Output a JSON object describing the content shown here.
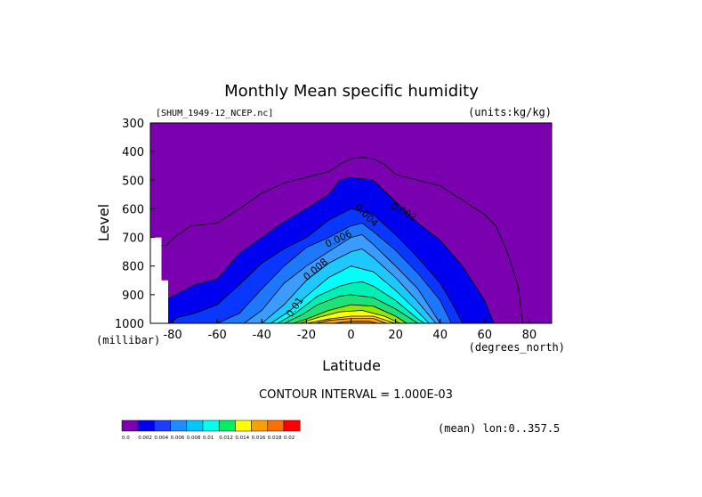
{
  "chart_data": {
    "type": "contour",
    "title": "Monthly Mean specific humidity",
    "file_label": "[SHUM_1949-12_NCEP.nc]",
    "units_label": "(units:kg/kg)",
    "xlabel": "Latitude",
    "ylabel": "Level",
    "x_unit_label": "(degrees_north)",
    "y_unit_label": "(millibar)",
    "xlim": [
      -90,
      90
    ],
    "ylim": [
      1000,
      300
    ],
    "x_ticks": [
      -80,
      -60,
      -40,
      -20,
      0,
      20,
      40,
      60,
      80
    ],
    "y_ticks": [
      300,
      400,
      500,
      600,
      700,
      800,
      900,
      1000
    ],
    "contour_interval_label": "CONTOUR INTERVAL = 1.000E-03",
    "mean_label": "(mean) lon:0..357.5",
    "missing_region": [
      [
        -90,
        700
      ],
      [
        -85,
        700
      ],
      [
        -85,
        850
      ],
      [
        -82,
        850
      ],
      [
        -82,
        1000
      ],
      [
        -90,
        1000
      ]
    ],
    "contour_labels": [
      {
        "text": "0.002",
        "lat": 23,
        "lev": 620,
        "angle": 28
      },
      {
        "text": "0.004",
        "lat": 6,
        "lev": 630,
        "angle": 45
      },
      {
        "text": "0.006",
        "lat": -5,
        "lev": 715,
        "angle": -25
      },
      {
        "text": "0.008",
        "lat": -15,
        "lev": 820,
        "angle": -40
      },
      {
        "text": "0.01",
        "lat": -24,
        "lev": 950,
        "angle": -55
      }
    ],
    "levels": [
      {
        "min": 0.0,
        "color": "#7a00b0",
        "points": [
          [
            -90,
            300
          ],
          [
            90,
            300
          ],
          [
            90,
            1000
          ],
          [
            -90,
            1000
          ]
        ]
      },
      {
        "min": 0.002,
        "color": "#0000f0",
        "points": [
          [
            -87,
            1000
          ],
          [
            -90,
            1000
          ],
          [
            -90,
            880
          ],
          [
            -86,
            935
          ],
          [
            -80,
            905
          ],
          [
            -70,
            865
          ],
          [
            -60,
            845
          ],
          [
            -50,
            755
          ],
          [
            -40,
            700
          ],
          [
            -30,
            645
          ],
          [
            -20,
            600
          ],
          [
            -10,
            550
          ],
          [
            -5,
            500
          ],
          [
            0,
            490
          ],
          [
            10,
            500
          ],
          [
            20,
            575
          ],
          [
            30,
            650
          ],
          [
            40,
            710
          ],
          [
            50,
            800
          ],
          [
            60,
            920
          ],
          [
            64,
            1000
          ]
        ]
      },
      {
        "min": 0.003,
        "color": "#0a37ff",
        "points": [
          [
            -81,
            1000
          ],
          [
            -78,
            980
          ],
          [
            -70,
            965
          ],
          [
            -60,
            935
          ],
          [
            -50,
            865
          ],
          [
            -40,
            790
          ],
          [
            -30,
            740
          ],
          [
            -20,
            700
          ],
          [
            -10,
            640
          ],
          [
            0,
            600
          ],
          [
            10,
            620
          ],
          [
            20,
            690
          ],
          [
            30,
            770
          ],
          [
            40,
            860
          ],
          [
            45,
            925
          ],
          [
            50,
            1000
          ]
        ]
      },
      {
        "min": 0.004,
        "color": "#1e78ff",
        "points": [
          [
            -60,
            1000
          ],
          [
            -50,
            965
          ],
          [
            -40,
            880
          ],
          [
            -30,
            800
          ],
          [
            -20,
            735
          ],
          [
            -10,
            700
          ],
          [
            -5,
            680
          ],
          [
            0,
            660
          ],
          [
            5,
            650
          ],
          [
            10,
            680
          ],
          [
            20,
            745
          ],
          [
            30,
            825
          ],
          [
            40,
            920
          ],
          [
            45,
            1000
          ]
        ]
      },
      {
        "min": 0.005,
        "color": "#3c9bff",
        "points": [
          [
            -48,
            1000
          ],
          [
            -40,
            955
          ],
          [
            -30,
            860
          ],
          [
            -20,
            800
          ],
          [
            -10,
            750
          ],
          [
            0,
            700
          ],
          [
            5,
            690
          ],
          [
            10,
            725
          ],
          [
            20,
            800
          ],
          [
            30,
            880
          ],
          [
            40,
            1000
          ]
        ]
      },
      {
        "min": 0.006,
        "color": "#1ec8ff",
        "points": [
          [
            -40,
            1000
          ],
          [
            -30,
            935
          ],
          [
            -20,
            850
          ],
          [
            -10,
            790
          ],
          [
            0,
            750
          ],
          [
            5,
            740
          ],
          [
            10,
            770
          ],
          [
            20,
            840
          ],
          [
            30,
            925
          ],
          [
            38,
            1000
          ]
        ]
      },
      {
        "min": 0.007,
        "color": "#00fff8",
        "points": [
          [
            -36,
            1000
          ],
          [
            -28,
            960
          ],
          [
            -20,
            905
          ],
          [
            -10,
            840
          ],
          [
            0,
            800
          ],
          [
            10,
            820
          ],
          [
            20,
            885
          ],
          [
            30,
            960
          ],
          [
            35,
            1000
          ]
        ]
      },
      {
        "min": 0.008,
        "color": "#00f0b4",
        "points": [
          [
            -33,
            1000
          ],
          [
            -25,
            965
          ],
          [
            -15,
            905
          ],
          [
            -5,
            870
          ],
          [
            0,
            860
          ],
          [
            5,
            855
          ],
          [
            10,
            870
          ],
          [
            20,
            920
          ],
          [
            30,
            985
          ],
          [
            33,
            1000
          ]
        ]
      },
      {
        "min": 0.009,
        "color": "#1ee178",
        "points": [
          [
            -30,
            1000
          ],
          [
            -22,
            970
          ],
          [
            -15,
            935
          ],
          [
            -5,
            905
          ],
          [
            0,
            900
          ],
          [
            10,
            910
          ],
          [
            20,
            950
          ],
          [
            30,
            1000
          ]
        ]
      },
      {
        "min": 0.01,
        "color": "#96e600",
        "points": [
          [
            -26,
            1000
          ],
          [
            -20,
            985
          ],
          [
            -10,
            955
          ],
          [
            0,
            935
          ],
          [
            10,
            940
          ],
          [
            20,
            975
          ],
          [
            25,
            1000
          ]
        ]
      },
      {
        "min": 0.011,
        "color": "#ffff00",
        "points": [
          [
            -23,
            1000
          ],
          [
            -15,
            980
          ],
          [
            -5,
            960
          ],
          [
            5,
            955
          ],
          [
            15,
            975
          ],
          [
            22,
            1000
          ]
        ]
      },
      {
        "min": 0.012,
        "color": "#ffd200",
        "points": [
          [
            -20,
            1000
          ],
          [
            -10,
            985
          ],
          [
            0,
            975
          ],
          [
            10,
            975
          ],
          [
            18,
            995
          ],
          [
            20,
            1000
          ]
        ]
      },
      {
        "min": 0.013,
        "color": "#ffa000",
        "points": [
          [
            -16,
            1000
          ],
          [
            -10,
            990
          ],
          [
            0,
            983
          ],
          [
            10,
            983
          ],
          [
            16,
            1000
          ]
        ]
      },
      {
        "min": 0.014,
        "color": "#ff8c00",
        "points": [
          [
            -8,
            1000
          ],
          [
            0,
            993
          ],
          [
            8,
            993
          ],
          [
            12,
            1000
          ]
        ]
      }
    ],
    "contour_lines": [
      {
        "level": 0.001,
        "points": [
          [
            -90,
            700
          ],
          [
            -86,
            725
          ],
          [
            -83,
            730
          ],
          [
            -80,
            705
          ],
          [
            -72,
            660
          ],
          [
            -60,
            650
          ],
          [
            -50,
            600
          ],
          [
            -40,
            545
          ],
          [
            -30,
            510
          ],
          [
            -20,
            490
          ],
          [
            -10,
            470
          ],
          [
            -5,
            445
          ],
          [
            0,
            425
          ],
          [
            5,
            420
          ],
          [
            10,
            425
          ],
          [
            15,
            445
          ],
          [
            20,
            480
          ],
          [
            30,
            500
          ],
          [
            40,
            520
          ],
          [
            50,
            570
          ],
          [
            60,
            620
          ],
          [
            65,
            660
          ],
          [
            70,
            750
          ],
          [
            75,
            870
          ],
          [
            77,
            1000
          ]
        ]
      }
    ],
    "colorbar": {
      "colors": [
        "#7a00b0",
        "#0000f0",
        "#1e3cff",
        "#1e8cff",
        "#00c8ff",
        "#00fff0",
        "#00f064",
        "#ffff00",
        "#ffa000",
        "#ff6e00",
        "#ff0000"
      ],
      "tick_labels": [
        "0.0",
        "0.002",
        "0.004",
        "0.006",
        "0.008",
        "0.01",
        "0.012",
        "0.014",
        "0.016",
        "0.018",
        "0.02"
      ]
    }
  }
}
